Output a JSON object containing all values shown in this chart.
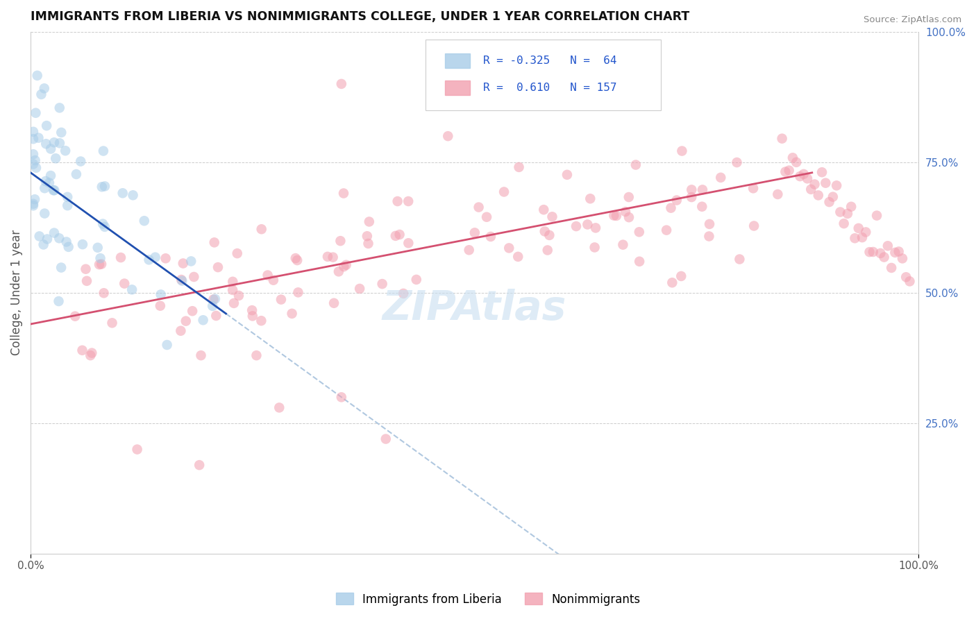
{
  "title": "IMMIGRANTS FROM LIBERIA VS NONIMMIGRANTS COLLEGE, UNDER 1 YEAR CORRELATION CHART",
  "source": "Source: ZipAtlas.com",
  "ylabel": "College, Under 1 year",
  "blue_color": "#a8cce8",
  "pink_color": "#f2a0b0",
  "blue_line_color": "#2050b0",
  "pink_line_color": "#d45070",
  "dashed_color": "#b0c8e0",
  "watermark_color": "#c8dff0",
  "title_fontsize": 13,
  "axis_tick_color": "#4472c4",
  "ylabel_color": "#555555",
  "source_color": "#888888",
  "grid_color": "#cccccc",
  "legend_text_color": "#2255cc"
}
